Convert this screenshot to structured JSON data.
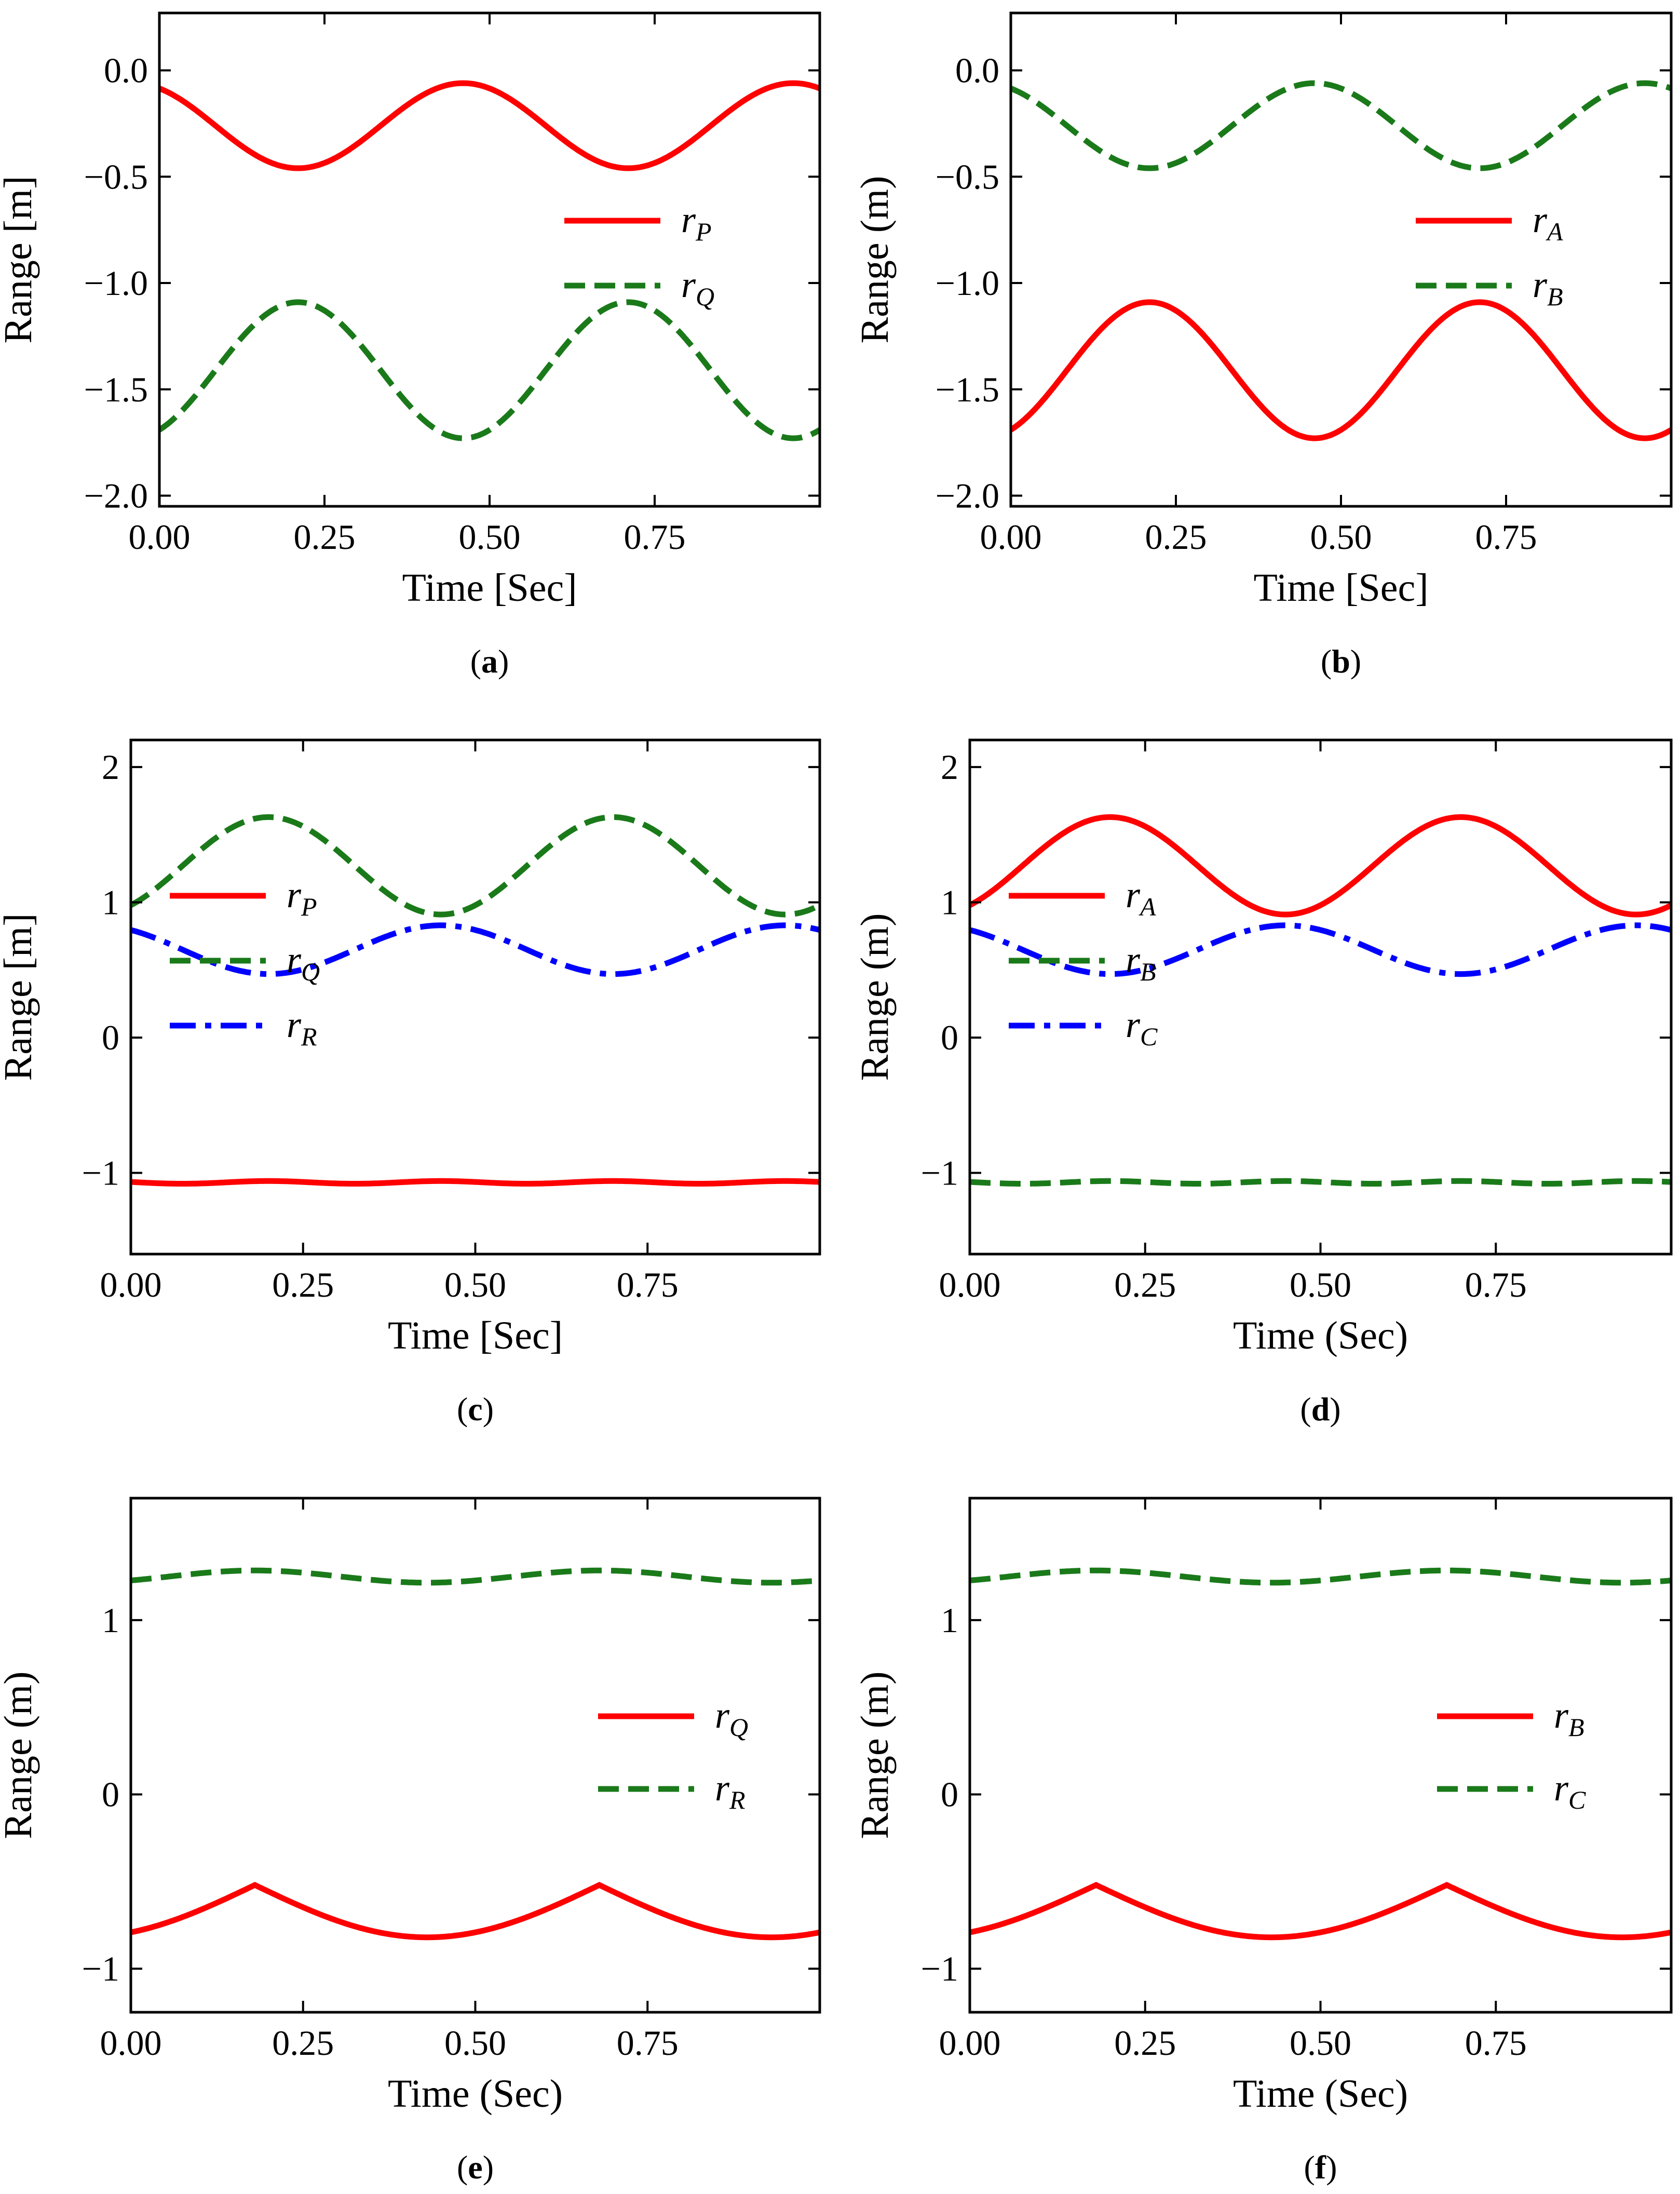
{
  "chart_data": [
    {
      "panel": "a",
      "type": "line",
      "caption_letter": "a",
      "xlabel": "Time [Sec]",
      "ylabel": "Range [m]",
      "xlim": [
        0,
        1.0
      ],
      "ylim": [
        -2.05,
        0.27
      ],
      "xticks": [
        0.0,
        0.25,
        0.5,
        0.75
      ],
      "xtick_labels": [
        "0.00",
        "0.25",
        "0.50",
        "0.75"
      ],
      "yticks": [
        0.0,
        -0.5,
        -1.0,
        -1.5,
        -2.0
      ],
      "ytick_labels": [
        "0.0",
        "−0.5",
        "−1.0",
        "−1.5",
        "−2.0"
      ],
      "legend_position": "center",
      "series": [
        {
          "name": "rP",
          "base": "r",
          "sub": "P",
          "color": "#ff0000",
          "dash": "solid",
          "kind": "sine",
          "mean": -0.26,
          "amp": 0.2,
          "period": 0.5,
          "phase": 0.21,
          "sign": -1
        },
        {
          "name": "rQ",
          "base": "r",
          "sub": "Q",
          "color": "#1a7a1a",
          "dash": "dashed",
          "kind": "sine",
          "mean": -1.41,
          "amp": 0.32,
          "period": 0.5,
          "phase": 0.21,
          "sign": 1
        }
      ]
    },
    {
      "panel": "b",
      "type": "line",
      "caption_letter": "b",
      "xlabel": "Time [Sec]",
      "ylabel": "Range (m)",
      "xlim": [
        0,
        1.0
      ],
      "ylim": [
        -2.05,
        0.27
      ],
      "xticks": [
        0.0,
        0.25,
        0.5,
        0.75
      ],
      "xtick_labels": [
        "0.00",
        "0.25",
        "0.50",
        "0.75"
      ],
      "yticks": [
        0.0,
        -0.5,
        -1.0,
        -1.5,
        -2.0
      ],
      "ytick_labels": [
        "0.0",
        "−0.5",
        "−1.0",
        "−1.5",
        "−2.0"
      ],
      "legend_position": "center",
      "series": [
        {
          "name": "rA",
          "base": "r",
          "sub": "A",
          "color": "#ff0000",
          "dash": "solid",
          "kind": "sine",
          "mean": -1.41,
          "amp": 0.32,
          "period": 0.5,
          "phase": 0.21,
          "sign": 1
        },
        {
          "name": "rB",
          "base": "r",
          "sub": "B",
          "color": "#1a7a1a",
          "dash": "dashed",
          "kind": "sine",
          "mean": -0.26,
          "amp": 0.2,
          "period": 0.5,
          "phase": 0.21,
          "sign": -1
        }
      ]
    },
    {
      "panel": "c",
      "type": "line",
      "caption_letter": "c",
      "xlabel": "Time [Sec]",
      "ylabel": "Range [m]",
      "xlim": [
        0,
        1.0
      ],
      "ylim": [
        -1.6,
        2.2
      ],
      "xticks": [
        0.0,
        0.25,
        0.5,
        0.75
      ],
      "xtick_labels": [
        "0.00",
        "0.25",
        "0.50",
        "0.75"
      ],
      "yticks": [
        2,
        1,
        0,
        -1
      ],
      "ytick_labels": [
        "2",
        "1",
        "0",
        "−1"
      ],
      "legend_position": "center-left",
      "series": [
        {
          "name": "rP",
          "base": "r",
          "sub": "P",
          "color": "#ff0000",
          "dash": "solid",
          "kind": "sine",
          "mean": -1.07,
          "amp": 0.01,
          "period": 0.25,
          "phase": 0.2,
          "sign": 1
        },
        {
          "name": "rQ",
          "base": "r",
          "sub": "Q",
          "color": "#1a7a1a",
          "dash": "dashed",
          "kind": "sine",
          "mean": 1.27,
          "amp": 0.36,
          "period": 0.5,
          "phase": 0.2,
          "sign": 1
        },
        {
          "name": "rR",
          "base": "r",
          "sub": "R",
          "color": "#0000ff",
          "dash": "dashdot",
          "kind": "sine",
          "mean": 0.65,
          "amp": 0.18,
          "period": 0.5,
          "phase": 0.2,
          "sign": -1
        }
      ]
    },
    {
      "panel": "d",
      "type": "line",
      "caption_letter": "d",
      "xlabel": "Time (Sec)",
      "ylabel": "Range (m)",
      "xlim": [
        0,
        1.0
      ],
      "ylim": [
        -1.6,
        2.2
      ],
      "xticks": [
        0.0,
        0.25,
        0.5,
        0.75
      ],
      "xtick_labels": [
        "0.00",
        "0.25",
        "0.50",
        "0.75"
      ],
      "yticks": [
        2,
        1,
        0,
        -1
      ],
      "ytick_labels": [
        "2",
        "1",
        "0",
        "−1"
      ],
      "legend_position": "center-left",
      "series": [
        {
          "name": "rA",
          "base": "r",
          "sub": "A",
          "color": "#ff0000",
          "dash": "solid",
          "kind": "sine",
          "mean": 1.27,
          "amp": 0.36,
          "period": 0.5,
          "phase": 0.2,
          "sign": 1
        },
        {
          "name": "rB",
          "base": "r",
          "sub": "B",
          "color": "#1a7a1a",
          "dash": "dashed",
          "kind": "sine",
          "mean": -1.07,
          "amp": 0.01,
          "period": 0.25,
          "phase": 0.2,
          "sign": 1
        },
        {
          "name": "rC",
          "base": "r",
          "sub": "C",
          "color": "#0000ff",
          "dash": "dashdot",
          "kind": "sine",
          "mean": 0.65,
          "amp": 0.18,
          "period": 0.5,
          "phase": 0.2,
          "sign": -1
        }
      ]
    },
    {
      "panel": "e",
      "type": "line",
      "caption_letter": "e",
      "xlabel": "Time (Sec)",
      "ylabel": "Range (m)",
      "xlim": [
        0,
        1.0
      ],
      "ylim": [
        -1.25,
        1.7
      ],
      "xticks": [
        0.0,
        0.25,
        0.5,
        0.75
      ],
      "xtick_labels": [
        "0.00",
        "0.25",
        "0.50",
        "0.75"
      ],
      "yticks": [
        1,
        0,
        -1
      ],
      "ytick_labels": [
        "1",
        "0",
        "−1"
      ],
      "legend_position": "center-right",
      "series": [
        {
          "name": "rQ",
          "base": "r",
          "sub": "Q",
          "color": "#ff0000",
          "dash": "solid",
          "kind": "cusp",
          "peak": -0.52,
          "low": -0.82,
          "period": 0.5,
          "phase": 0.18
        },
        {
          "name": "rR",
          "base": "r",
          "sub": "R",
          "color": "#1a7a1a",
          "dash": "dashed",
          "kind": "sine",
          "mean": 1.25,
          "amp": 0.035,
          "period": 0.5,
          "phase": 0.18,
          "sign": 1
        }
      ]
    },
    {
      "panel": "f",
      "type": "line",
      "caption_letter": "f",
      "xlabel": "Time (Sec)",
      "ylabel": "Range (m)",
      "xlim": [
        0,
        1.0
      ],
      "ylim": [
        -1.25,
        1.7
      ],
      "xticks": [
        0.0,
        0.25,
        0.5,
        0.75
      ],
      "xtick_labels": [
        "0.00",
        "0.25",
        "0.50",
        "0.75"
      ],
      "yticks": [
        1,
        0,
        -1
      ],
      "ytick_labels": [
        "1",
        "0",
        "−1"
      ],
      "legend_position": "center-right",
      "series": [
        {
          "name": "rB",
          "base": "r",
          "sub": "B",
          "color": "#ff0000",
          "dash": "solid",
          "kind": "cusp",
          "peak": -0.52,
          "low": -0.82,
          "period": 0.5,
          "phase": 0.18
        },
        {
          "name": "rC",
          "base": "r",
          "sub": "C",
          "color": "#1a7a1a",
          "dash": "dashed",
          "kind": "sine",
          "mean": 1.25,
          "amp": 0.035,
          "period": 0.5,
          "phase": 0.18,
          "sign": 1
        }
      ]
    }
  ]
}
